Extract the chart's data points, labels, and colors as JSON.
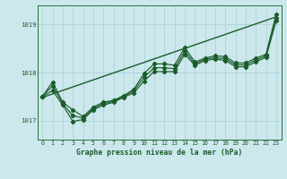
{
  "title": "Graphe pression niveau de la mer (hPa)",
  "bg_color": "#cce8ec",
  "plot_bg_color": "#cce8ec",
  "grid_color": "#aacdd4",
  "line_color": "#1a5c2a",
  "text_color": "#1a5c2a",
  "spine_color": "#2d6e3e",
  "ylim": [
    1016.6,
    1019.4
  ],
  "xlim": [
    -0.5,
    23.5
  ],
  "yticks": [
    1017,
    1018,
    1019
  ],
  "xticks": [
    0,
    1,
    2,
    3,
    4,
    5,
    6,
    7,
    8,
    9,
    10,
    11,
    12,
    13,
    14,
    15,
    16,
    17,
    18,
    19,
    20,
    21,
    22,
    23
  ],
  "series1": [
    1017.5,
    1017.8,
    1017.38,
    1017.22,
    1017.08,
    1017.28,
    1017.38,
    1017.42,
    1017.52,
    1017.65,
    1017.98,
    1018.18,
    1018.18,
    1018.15,
    1018.52,
    1018.22,
    1018.3,
    1018.35,
    1018.33,
    1018.2,
    1018.2,
    1018.3,
    1018.38,
    1019.22
  ],
  "series2": [
    1017.5,
    1017.62,
    1017.32,
    1016.98,
    1017.02,
    1017.22,
    1017.32,
    1017.38,
    1017.48,
    1017.58,
    1017.82,
    1018.02,
    1018.02,
    1018.02,
    1018.38,
    1018.15,
    1018.25,
    1018.28,
    1018.25,
    1018.12,
    1018.12,
    1018.22,
    1018.32,
    1019.08
  ],
  "series3": [
    1017.5,
    1017.72,
    1017.35,
    1017.1,
    1017.05,
    1017.25,
    1017.35,
    1017.4,
    1017.5,
    1017.62,
    1017.9,
    1018.1,
    1018.1,
    1018.08,
    1018.45,
    1018.18,
    1018.28,
    1018.31,
    1018.29,
    1018.16,
    1018.16,
    1018.26,
    1018.35,
    1019.14
  ],
  "trend_x": [
    0,
    23
  ],
  "trend_y": [
    1017.48,
    1019.16
  ]
}
